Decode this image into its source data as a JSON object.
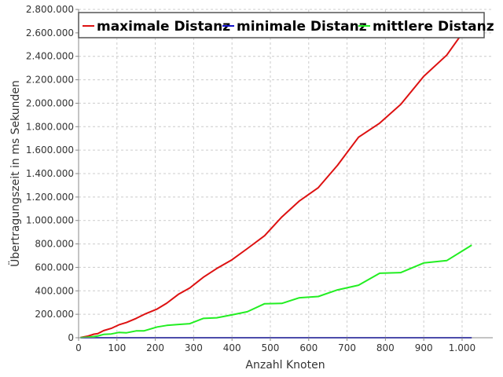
{
  "chart_data": {
    "type": "line",
    "title": "",
    "xlabel": "Anzahl Knoten",
    "ylabel": "Übertragungszeit in ms Sekunden",
    "xlim": [
      0,
      1080
    ],
    "ylim": [
      0,
      2800000
    ],
    "x_ticks": [
      0,
      100,
      200,
      300,
      400,
      500,
      600,
      700,
      800,
      900,
      1000
    ],
    "x_tick_labels": [
      "0",
      "100",
      "200",
      "300",
      "400",
      "500",
      "600",
      "700",
      "800",
      "900",
      "1.000"
    ],
    "y_ticks": [
      0,
      200000,
      400000,
      600000,
      800000,
      1000000,
      1200000,
      1400000,
      1600000,
      1800000,
      2000000,
      2200000,
      2400000,
      2600000,
      2800000
    ],
    "y_tick_labels": [
      "0",
      "200.000",
      "400.000",
      "600.000",
      "800.000",
      "1.000.000",
      "1.200.000",
      "1.400.000",
      "1.600.000",
      "1.800.000",
      "2.000.000",
      "2.200.000",
      "2.400.000",
      "2.600.000",
      "2.800.000"
    ],
    "grid": true,
    "legend_position": "top",
    "series": [
      {
        "name": "maximale Distanz",
        "color": "#dd1111",
        "points": [
          [
            5,
            2000
          ],
          [
            25,
            15000
          ],
          [
            40,
            30000
          ],
          [
            50,
            35000
          ],
          [
            65,
            60000
          ],
          [
            85,
            80000
          ],
          [
            105,
            110000
          ],
          [
            125,
            130000
          ],
          [
            150,
            165000
          ],
          [
            175,
            205000
          ],
          [
            205,
            245000
          ],
          [
            230,
            295000
          ],
          [
            260,
            370000
          ],
          [
            290,
            425000
          ],
          [
            325,
            515000
          ],
          [
            360,
            590000
          ],
          [
            400,
            665000
          ],
          [
            440,
            760000
          ],
          [
            485,
            870000
          ],
          [
            530,
            1030000
          ],
          [
            575,
            1165000
          ],
          [
            625,
            1280000
          ],
          [
            675,
            1470000
          ],
          [
            730,
            1710000
          ],
          [
            785,
            1830000
          ],
          [
            840,
            1990000
          ],
          [
            900,
            2230000
          ],
          [
            960,
            2410000
          ],
          [
            1010,
            2640000
          ],
          [
            1025,
            2700000
          ]
        ]
      },
      {
        "name": "minimale Distanz",
        "color": "#1111cc",
        "points": [
          [
            5,
            0
          ],
          [
            1025,
            0
          ]
        ]
      },
      {
        "name": "mittlere Distanz",
        "color": "#22ee22",
        "points": [
          [
            5,
            1000
          ],
          [
            25,
            5000
          ],
          [
            40,
            10000
          ],
          [
            50,
            15000
          ],
          [
            65,
            28000
          ],
          [
            85,
            32000
          ],
          [
            105,
            45000
          ],
          [
            125,
            42000
          ],
          [
            150,
            58000
          ],
          [
            170,
            58000
          ],
          [
            205,
            92000
          ],
          [
            230,
            105000
          ],
          [
            260,
            113000
          ],
          [
            290,
            120000
          ],
          [
            325,
            165000
          ],
          [
            360,
            170000
          ],
          [
            400,
            195000
          ],
          [
            440,
            222000
          ],
          [
            485,
            290000
          ],
          [
            530,
            293000
          ],
          [
            575,
            340000
          ],
          [
            625,
            352000
          ],
          [
            675,
            408000
          ],
          [
            730,
            448000
          ],
          [
            785,
            550000
          ],
          [
            840,
            555000
          ],
          [
            900,
            638000
          ],
          [
            960,
            658000
          ],
          [
            1025,
            790000
          ]
        ]
      }
    ]
  }
}
